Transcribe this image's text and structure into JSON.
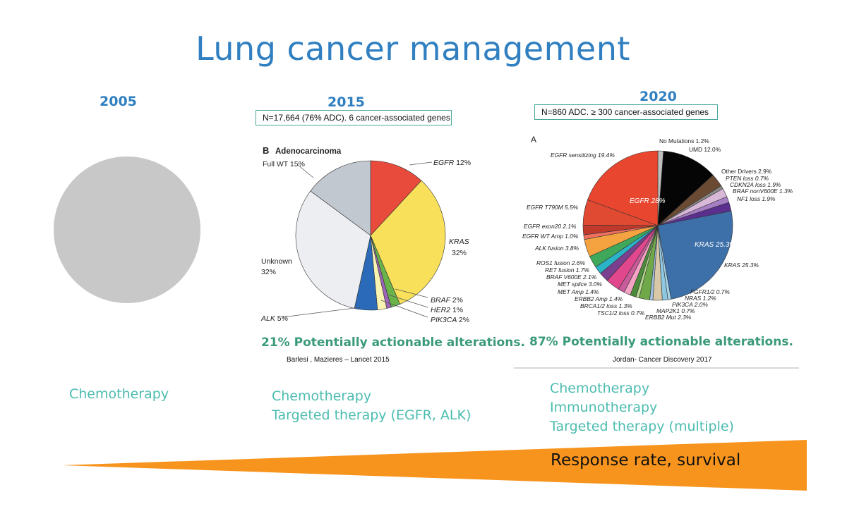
{
  "title": "Lung cancer management",
  "columns": [
    {
      "year": "2005",
      "therapies": [
        "Chemotherapy"
      ]
    },
    {
      "year": "2015",
      "note": "N=17,664 (76% ADC). 6 cancer-associated genes",
      "actionable": "21% Potentially actionable alterations.",
      "citation": "Barlesi , Mazieres – Lancet 2015",
      "therapies": [
        "Chemotherapy",
        "Targeted therapy (EGFR, ALK)"
      ]
    },
    {
      "year": "2020",
      "note": "N=860 ADC. ≥ 300 cancer-associated genes",
      "actionable": "87% Potentially actionable alterations.",
      "citation": "Jordan- Cancer Discovery 2017",
      "therapies": [
        "Chemotherapy",
        "Immunotherapy",
        "Targeted therapy (multiple)"
      ]
    }
  ],
  "response_label": "Response rate, survival",
  "colors": {
    "title": "#2f7fc1",
    "therapy": "#4cbcb0",
    "actionable": "#3a9a7a",
    "arrow": "#f7941d",
    "box_border": "#49a89a"
  },
  "chart_data": [
    {
      "type": "pie",
      "title": "",
      "values": [
        100
      ],
      "colors": [
        "#c8c8c8"
      ]
    },
    {
      "type": "pie",
      "panel": "B",
      "title": "Adenocarcinoma",
      "slices": [
        {
          "label": "EGFR",
          "pct_text": "12%",
          "value": 12,
          "color": "#e84a3c"
        },
        {
          "label": "KRAS",
          "pct_text": "32%",
          "value": 32,
          "color": "#f8e05a"
        },
        {
          "label": "BRAF",
          "pct_text": "2%",
          "value": 2,
          "color": "#6ab34b"
        },
        {
          "label": "HER2",
          "pct_text": "1%",
          "value": 1,
          "color": "#9c64b6"
        },
        {
          "label": "PIK3CA",
          "pct_text": "2%",
          "value": 2,
          "color": "#f9f3b2"
        },
        {
          "label": "ALK",
          "pct_text": "5%",
          "value": 5,
          "color": "#2a6ab8"
        },
        {
          "label": "Unknown",
          "pct_text": "32%",
          "value": 32,
          "color": "#eceef2"
        },
        {
          "label": "Full WT",
          "pct_text": "15%",
          "value": 15,
          "color": "#c2c8d0"
        }
      ]
    },
    {
      "type": "pie",
      "panel": "A",
      "slices": [
        {
          "label": "No Mutations 1.2%",
          "value": 1.2,
          "color": "#bfbfbf"
        },
        {
          "label": "UMD 12.0%",
          "value": 12.0,
          "color": "#050505"
        },
        {
          "label": "Other Drivers 2.9%",
          "value": 2.9,
          "color": "#6a4a32"
        },
        {
          "label": "PTEN loss 0.7%",
          "value": 0.7,
          "color": "#8a8a8a"
        },
        {
          "label": "CDKN2A loss 1.9%",
          "value": 1.9,
          "color": "#d8b8d8"
        },
        {
          "label": "BRAF nonV600E 1.3%",
          "value": 1.3,
          "color": "#a57ec4"
        },
        {
          "label": "NF1 loss 1.9%",
          "value": 1.9,
          "color": "#5a2f8e"
        },
        {
          "label": "KRAS 25.3%",
          "inner_label": "KRAS 25.3%",
          "value": 25.3,
          "color": "#3d6fa8"
        },
        {
          "label": "FGFR1/2 0.7%",
          "value": 0.7,
          "color": "#a6d4ea"
        },
        {
          "label": "NRAS 1.2%",
          "value": 1.2,
          "color": "#8ec7e0"
        },
        {
          "label": "PIK3CA 2.0%",
          "value": 2.0,
          "color": "#d8c8a8"
        },
        {
          "label": "MAP2K1 0.7%",
          "value": 0.7,
          "color": "#9fbfdf"
        },
        {
          "label": "ERBB2 Mut 2.3%",
          "value": 2.3,
          "color": "#6fa848"
        },
        {
          "label": "TSC1/2 loss 0.7%",
          "value": 0.7,
          "color": "#b8d890"
        },
        {
          "label": "BRCA1/2 loss 1.3%",
          "value": 1.3,
          "color": "#4b8b3b"
        },
        {
          "label": "ERBB2 Amp 1.4%",
          "value": 1.4,
          "color": "#f4a3c4"
        },
        {
          "label": "MET Amp 1.4%",
          "value": 1.4,
          "color": "#c95b9b"
        },
        {
          "label": "MET splice 3.0%",
          "value": 3.0,
          "color": "#e0478d"
        },
        {
          "label": "BRAF V600E 2.1%",
          "value": 2.1,
          "color": "#7a3f8e"
        },
        {
          "label": "RET fusion 1.7%",
          "value": 1.7,
          "color": "#2bb3c8"
        },
        {
          "label": "ROS1 fusion 2.6%",
          "value": 2.6,
          "color": "#3fa85a"
        },
        {
          "label": "ALK fusion 3.8%",
          "value": 3.8,
          "color": "#f4a340"
        },
        {
          "label": "EGFR WT Amp 1.0%",
          "value": 1.0,
          "color": "#f07060"
        },
        {
          "label": "EGFR exon20 2.1%",
          "value": 2.1,
          "color": "#c0392b"
        },
        {
          "label": "EGFR T790M 5.5%",
          "value": 5.5,
          "color": "#e04a32"
        },
        {
          "label": "EGFR sensitizing 19.4%",
          "value": 19.4,
          "color": "#e8462e"
        }
      ],
      "group_label": "EGFR 28%"
    }
  ]
}
